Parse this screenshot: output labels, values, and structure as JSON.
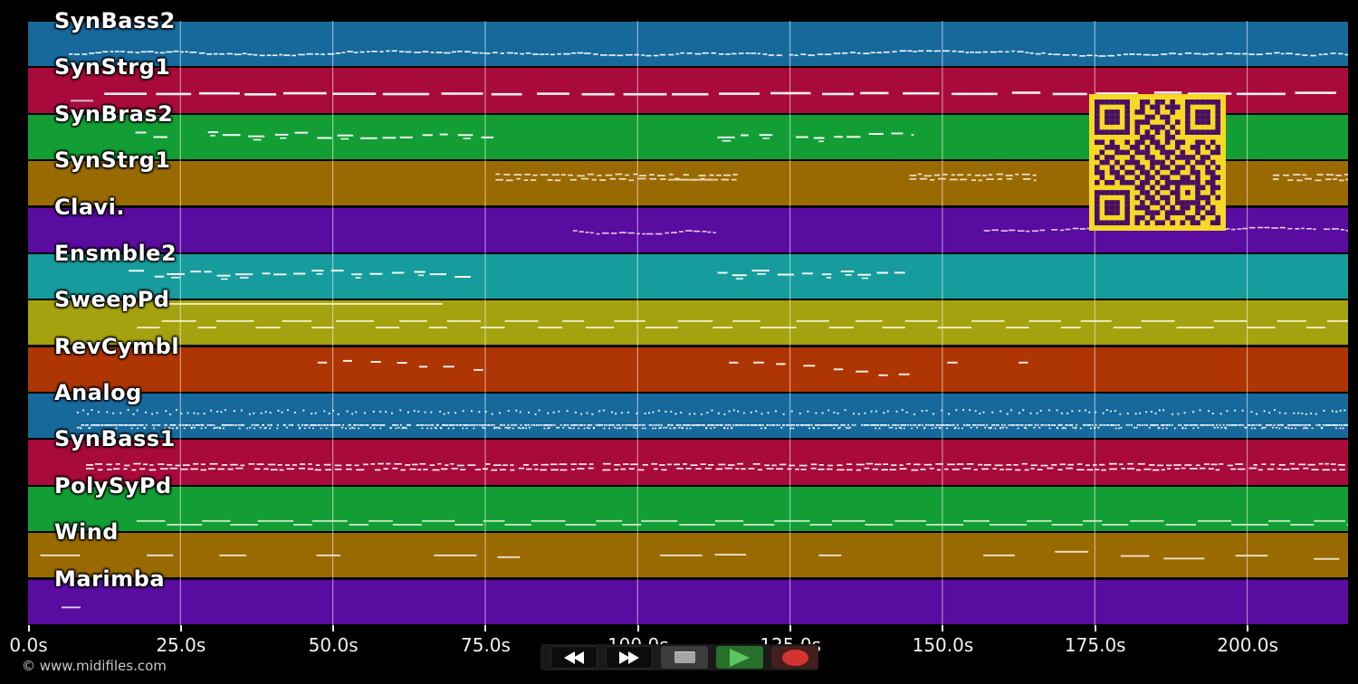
{
  "chart_data": {
    "type": "midi-track-timeline",
    "title": "",
    "x_axis": {
      "unit": "s",
      "grid": true,
      "range_s": [
        0,
        216.6
      ],
      "ticks": [
        {
          "s": 0,
          "label": "0.0s"
        },
        {
          "s": 25,
          "label": "25.0s"
        },
        {
          "s": 50,
          "label": "50.0s"
        },
        {
          "s": 75,
          "label": "75.0s"
        },
        {
          "s": 100,
          "label": "100.0s"
        },
        {
          "s": 125,
          "label": "125.0s"
        },
        {
          "s": 150,
          "label": "150.0s"
        },
        {
          "s": 175,
          "label": "175.0s"
        },
        {
          "s": 200,
          "label": "200.0s"
        }
      ]
    },
    "note_color_default": "#ffffff",
    "tracks": [
      {
        "name": "SynBass2",
        "color": "#17699c",
        "layers": [
          {
            "style": "wave",
            "base": 0.7,
            "seed": 1,
            "segments": [
              [
                6.7,
                216.6
              ]
            ]
          }
        ]
      },
      {
        "name": "SynStrg1",
        "color": "#a80a3c",
        "layers": [
          {
            "style": "longdash",
            "base": 0.54,
            "seed": 2,
            "segments": [
              [
                12.5,
                216.6
              ]
            ]
          },
          {
            "style": "line",
            "base": 0.7,
            "seed": 3,
            "color": "#e8c9d4",
            "segments": [
              [
                7.0,
                10.7
              ]
            ]
          }
        ]
      },
      {
        "name": "SynBras2",
        "color": "#129e35",
        "layers": [
          {
            "style": "steps",
            "base": 0.44,
            "seed": 4,
            "segments": [
              [
                17.6,
                77.4
              ],
              [
                113.1,
                145.3
              ]
            ]
          }
        ]
      },
      {
        "name": "SynStrg1",
        "color": "#9a6a02",
        "layers": [
          {
            "style": "microdash2",
            "base": 0.3,
            "seed": 5,
            "color": "#f3ead2",
            "segments": [
              [
                76.7,
                116.4
              ],
              [
                144.6,
                165.4
              ],
              [
                204.2,
                216.6
              ]
            ]
          },
          {
            "style": "line",
            "base": 0.4,
            "seed": 6,
            "color": "#e8d9b0",
            "segments": [
              [
                105.0,
                113.2
              ]
            ]
          }
        ]
      },
      {
        "name": "Clavi.",
        "color": "#5a0ba0",
        "layers": [
          {
            "style": "wave",
            "base": 0.5,
            "seed": 7,
            "color": "#e9d9f2",
            "segments": [
              [
                89.4,
                113.2
              ],
              [
                156.8,
                216.6
              ]
            ]
          }
        ]
      },
      {
        "name": "Ensmble2",
        "color": "#169c9c",
        "layers": [
          {
            "style": "steps",
            "base": 0.42,
            "seed": 8,
            "segments": [
              [
                16.5,
                77.3
              ],
              [
                113.1,
                144.8
              ]
            ]
          }
        ]
      },
      {
        "name": "SweepPd",
        "color": "#a4a30f",
        "layers": [
          {
            "style": "square",
            "base": 0.44,
            "base2": 0.58,
            "seed": 9,
            "color": "#f2f2cf",
            "segments": [
              [
                17.9,
                216.6
              ]
            ]
          },
          {
            "style": "line",
            "base": 0.07,
            "seed": 10,
            "color": "#f2f2cf",
            "segments": [
              [
                22.5,
                68.0
              ]
            ]
          }
        ]
      },
      {
        "name": "RevCymbl",
        "color": "#ae3504",
        "layers": [
          {
            "style": "sparse",
            "base": 0.45,
            "seed": 11,
            "segments": [
              [
                47.5,
                76.5
              ],
              [
                115.0,
                144.6
              ],
              [
                150.8,
                152.5
              ],
              [
                162.5,
                165.5
              ]
            ]
          }
        ]
      },
      {
        "name": "Analog",
        "color": "#17699c",
        "layers": [
          {
            "style": "dots",
            "base": 0.4,
            "seed": 12,
            "segments": [
              [
                8.0,
                216.6
              ]
            ]
          },
          {
            "style": "dotline",
            "base": 0.68,
            "seed": 13,
            "segments": [
              [
                8.0,
                216.6
              ]
            ]
          }
        ]
      },
      {
        "name": "SynBass1",
        "color": "#a80a3c",
        "layers": [
          {
            "style": "microdash2",
            "base": 0.53,
            "seed": 14,
            "segments": [
              [
                9.5,
                216.6
              ]
            ]
          }
        ]
      },
      {
        "name": "PolySyPd",
        "color": "#129e35",
        "layers": [
          {
            "style": "square",
            "base": 0.74,
            "base2": 0.82,
            "seed": 15,
            "color": "#cdeccd",
            "segments": [
              [
                17.8,
                216.6
              ]
            ]
          }
        ]
      },
      {
        "name": "Wind",
        "color": "#9a6a02",
        "layers": [
          {
            "style": "winddash",
            "base": 0.48,
            "seed": 16,
            "color": "#f3ead2",
            "segments": [
              [
                2.0,
                15.8
              ],
              [
                19.5,
                23.8
              ],
              [
                31.4,
                35.8
              ],
              [
                47.3,
                51.4
              ],
              [
                66.6,
                80.7
              ],
              [
                103.7,
                117.8
              ],
              [
                129.7,
                133.4
              ],
              [
                156.7,
                216.6
              ]
            ]
          }
        ]
      },
      {
        "name": "Marimba",
        "color": "#5a0ba0",
        "layers": [
          {
            "style": "line",
            "base": 0.6,
            "seed": 17,
            "color": "#e9d9f2",
            "segments": [
              [
                5.5,
                8.6
              ]
            ]
          }
        ]
      }
    ]
  },
  "qr_code": {
    "light": "#f6d825",
    "dark": "#470f63",
    "matrix": [
      "1111111001101101001111111",
      "1000001001011011101000001",
      "1011101011001001001011101",
      "1011101000110110001011101",
      "1011101011100010101011101",
      "1000001010011101001000001",
      "1111111010101010101111111",
      "0000000001110011000000000",
      "1101001011011010110011010",
      "0011100110101100100110101",
      "0100111011100111010010011",
      "1011000100110010111101100",
      "0110101110011101001011010",
      "1001010011010110110100101",
      "1101101101101001100110110",
      "0100110010110110011010011",
      "1011011101101011111110110",
      "0000000011010110100011011",
      "1111111001101001101010010",
      "1000001010110110100011101",
      "1011101001011010111110100",
      "1011101011100101011011010",
      "1011101000111011110010110",
      "1000001011010010001101001",
      "1111111010101101010110011"
    ]
  },
  "transport": {
    "background": "#1a1a1a",
    "colors": {
      "button_dark": "#0d0d0d",
      "stop_bg": "#3c3c3c",
      "stop_square": "#a5a5a5",
      "play_bg": "#27702b",
      "play_triangle": "#5dc462",
      "record_bg": "#421f1c",
      "record_dot": "#d43431"
    },
    "buttons": [
      {
        "id": "rewind",
        "icon": "rewind-icon"
      },
      {
        "id": "fast-forward",
        "icon": "fast-forward-icon"
      },
      {
        "id": "stop",
        "icon": "stop-icon"
      },
      {
        "id": "play",
        "icon": "play-icon"
      },
      {
        "id": "record",
        "icon": "record-icon"
      }
    ]
  },
  "footer": {
    "copyright": "© www.midifiles.com"
  }
}
